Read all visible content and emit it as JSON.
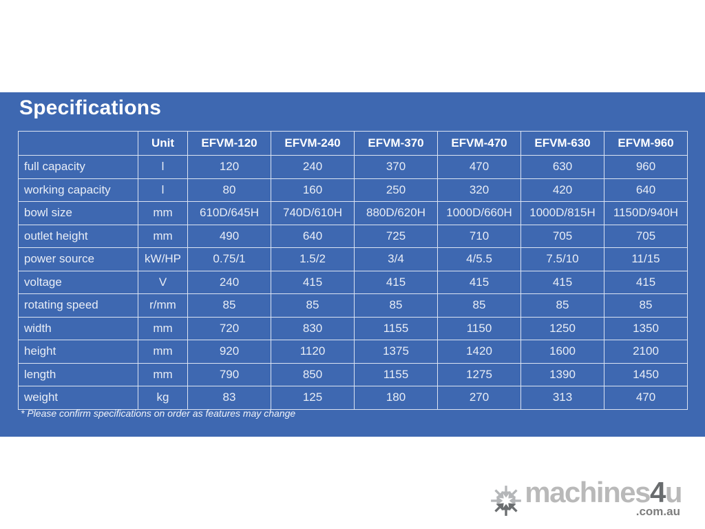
{
  "panel": {
    "title": "Specifications",
    "footnote": "* Please confirm specifications on order as features may change"
  },
  "table": {
    "columns": [
      "",
      "Unit",
      "EFVM-120",
      "EFVM-240",
      "EFVM-370",
      "EFVM-470",
      "EFVM-630",
      "EFVM-960"
    ],
    "rows": [
      {
        "label": "full capacity",
        "unit": "l",
        "values": [
          "120",
          "240",
          "370",
          "470",
          "630",
          "960"
        ]
      },
      {
        "label": "working capacity",
        "unit": "l",
        "values": [
          "80",
          "160",
          "250",
          "320",
          "420",
          "640"
        ]
      },
      {
        "label": "bowl size",
        "unit": "mm",
        "values": [
          "610D/645H",
          "740D/610H",
          "880D/620H",
          "1000D/660H",
          "1000D/815H",
          "1150D/940H"
        ]
      },
      {
        "label": "outlet height",
        "unit": "mm",
        "values": [
          "490",
          "640",
          "725",
          "710",
          "705",
          "705"
        ]
      },
      {
        "label": "power source",
        "unit": "kW/HP",
        "values": [
          "0.75/1",
          "1.5/2",
          "3/4",
          "4/5.5",
          "7.5/10",
          "11/15"
        ]
      },
      {
        "label": "voltage",
        "unit": "V",
        "values": [
          "240",
          "415",
          "415",
          "415",
          "415",
          "415"
        ]
      },
      {
        "label": "rotating speed",
        "unit": "r/mm",
        "values": [
          "85",
          "85",
          "85",
          "85",
          "85",
          "85"
        ]
      },
      {
        "label": "width",
        "unit": "mm",
        "values": [
          "720",
          "830",
          "1155",
          "1150",
          "1250",
          "1350"
        ]
      },
      {
        "label": "height",
        "unit": "mm",
        "values": [
          "920",
          "1120",
          "1375",
          "1420",
          "1600",
          "2100"
        ]
      },
      {
        "label": "length",
        "unit": "mm",
        "values": [
          "790",
          "850",
          "1155",
          "1275",
          "1390",
          "1450"
        ]
      },
      {
        "label": "weight",
        "unit": "kg",
        "values": [
          "83",
          "125",
          "180",
          "270",
          "313",
          "470"
        ]
      }
    ]
  },
  "logo": {
    "icon": "asterisk-arrows-icon",
    "brand_light": "machines",
    "brand_dark": "4",
    "brand_tail": "u",
    "domain": ".com.au"
  },
  "colors": {
    "panel_blue": "#3e68b1",
    "grid_line": "#dde5f3",
    "header_text": "#ffffff",
    "body_text": "#e8edf6",
    "logo_light": "#b9b9b9",
    "logo_dark": "#696c6e",
    "logo_domain": "#7d7d7d"
  }
}
